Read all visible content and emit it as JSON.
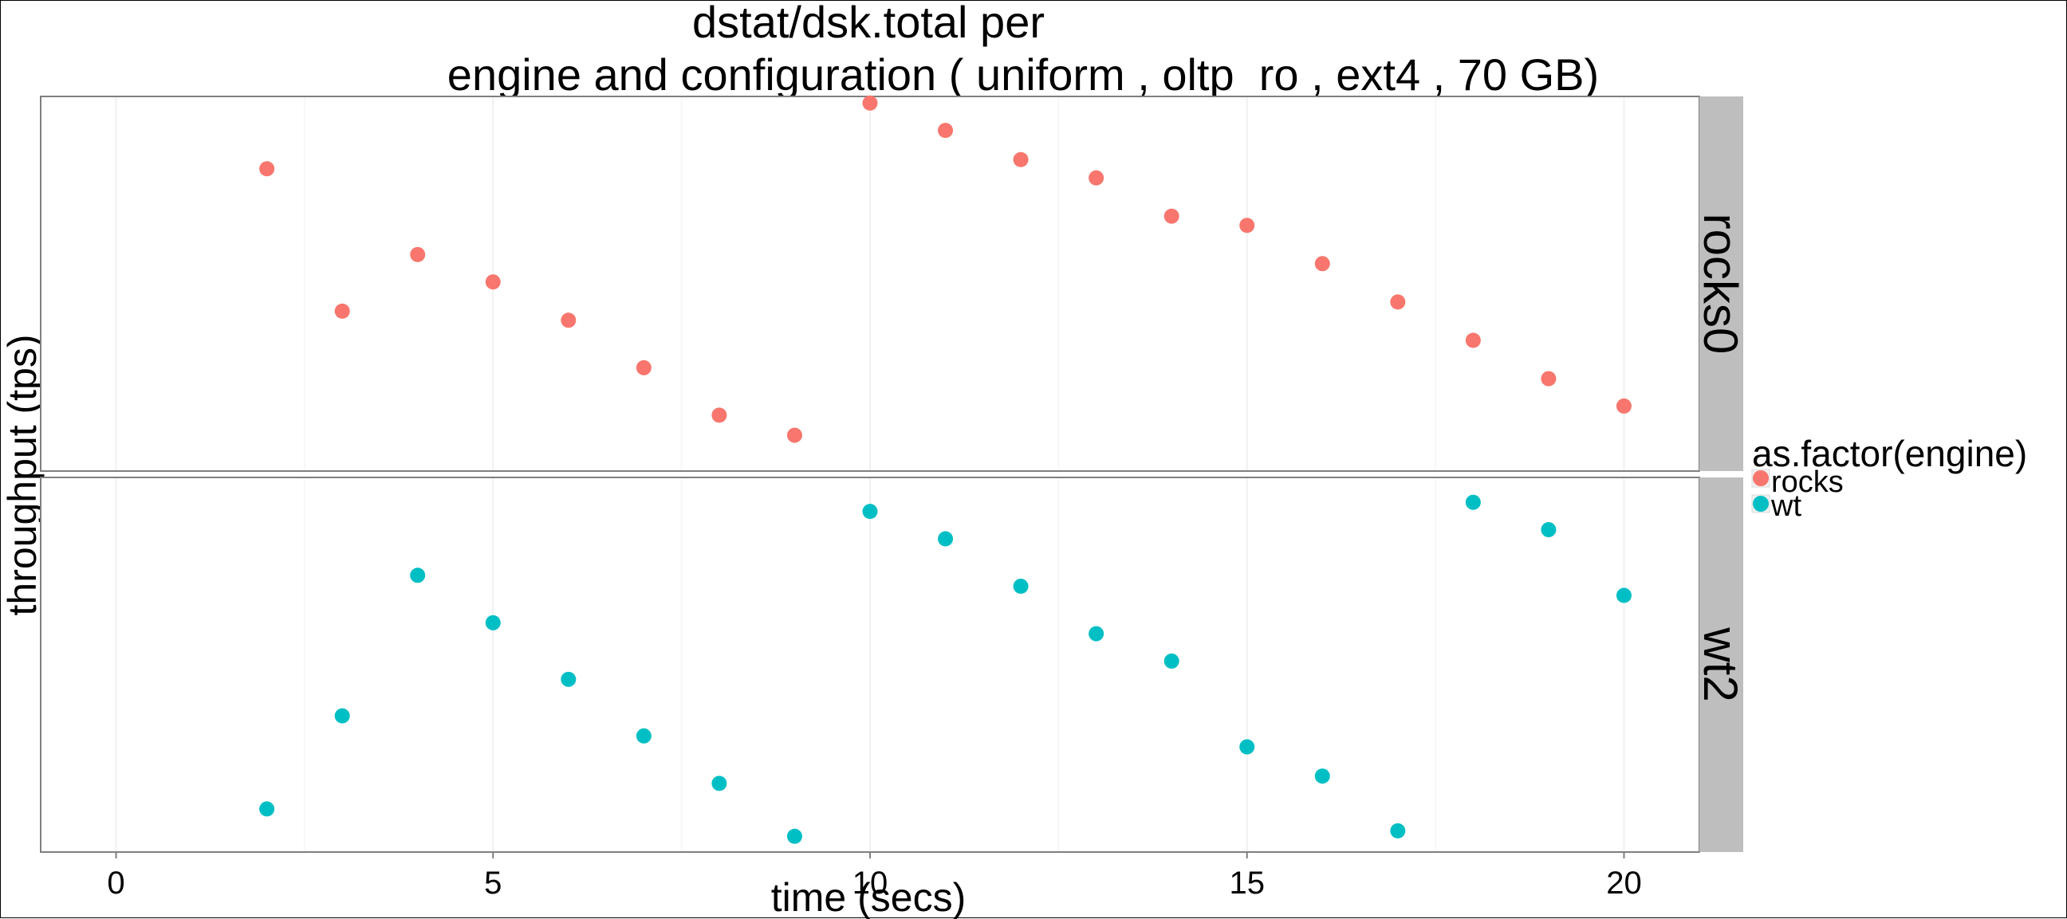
{
  "chart_data": {
    "type": "scatter",
    "title_line1": "dstat/dsk.total per",
    "title_line2": "engine and configuration ( uniform , oltp_ro , ext4 ,  70 GB)",
    "xlabel": "time (secs)",
    "ylabel": "throughput (tps)",
    "xlim": [
      -1,
      21
    ],
    "x_ticks": [
      0,
      5,
      10,
      15,
      20
    ],
    "grid": true,
    "legend": {
      "title": "as.factor(engine)",
      "position": "right",
      "entries": [
        {
          "label": "rocks",
          "color": "#F8766D"
        },
        {
          "label": "wt",
          "color": "#00BFC4"
        }
      ]
    },
    "panels": [
      {
        "strip": "rocks0",
        "series": "rocks",
        "ylim": [
          0,
          1
        ],
        "points": [
          {
            "x": 2,
            "y": 0.815
          },
          {
            "x": 3,
            "y": 0.425
          },
          {
            "x": 4,
            "y": 0.58
          },
          {
            "x": 5,
            "y": 0.505
          },
          {
            "x": 6,
            "y": 0.4
          },
          {
            "x": 7,
            "y": 0.27
          },
          {
            "x": 8,
            "y": 0.14
          },
          {
            "x": 9,
            "y": 0.085
          },
          {
            "x": 10,
            "y": 0.995
          },
          {
            "x": 11,
            "y": 0.92
          },
          {
            "x": 12,
            "y": 0.84
          },
          {
            "x": 13,
            "y": 0.79
          },
          {
            "x": 14,
            "y": 0.685
          },
          {
            "x": 15,
            "y": 0.66
          },
          {
            "x": 16,
            "y": 0.555
          },
          {
            "x": 17,
            "y": 0.45
          },
          {
            "x": 18,
            "y": 0.345
          },
          {
            "x": 19,
            "y": 0.24
          },
          {
            "x": 20,
            "y": 0.165
          }
        ]
      },
      {
        "strip": "wt2",
        "series": "wt",
        "ylim": [
          0,
          1
        ],
        "points": [
          {
            "x": 2,
            "y": 0.105
          },
          {
            "x": 3,
            "y": 0.36
          },
          {
            "x": 4,
            "y": 0.745
          },
          {
            "x": 5,
            "y": 0.615
          },
          {
            "x": 6,
            "y": 0.46
          },
          {
            "x": 7,
            "y": 0.305
          },
          {
            "x": 8,
            "y": 0.175
          },
          {
            "x": 9,
            "y": 0.03
          },
          {
            "x": 10,
            "y": 0.92
          },
          {
            "x": 11,
            "y": 0.845
          },
          {
            "x": 12,
            "y": 0.715
          },
          {
            "x": 13,
            "y": 0.585
          },
          {
            "x": 14,
            "y": 0.51
          },
          {
            "x": 15,
            "y": 0.275
          },
          {
            "x": 16,
            "y": 0.195
          },
          {
            "x": 17,
            "y": 0.045
          },
          {
            "x": 18,
            "y": 0.945
          },
          {
            "x": 19,
            "y": 0.87
          },
          {
            "x": 20,
            "y": 0.69
          }
        ]
      }
    ]
  }
}
